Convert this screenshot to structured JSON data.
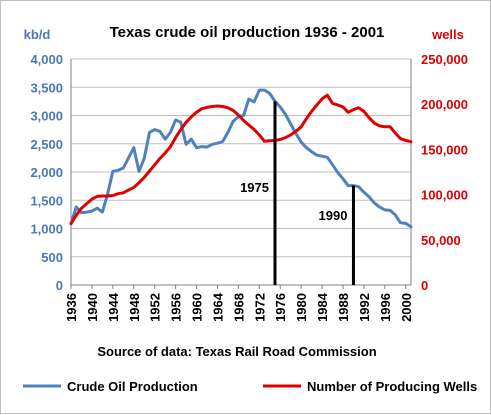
{
  "chart_data": {
    "type": "line",
    "title": "Texas crude oil production 1936 - 2001",
    "left_unit": "kb/d",
    "right_unit": "wells",
    "source": "Source of data: Texas Rail Road Commission",
    "left_axis": {
      "range": [
        0,
        4000
      ],
      "ticks": [
        "0",
        "500",
        "1,000",
        "1,500",
        "2,000",
        "2,500",
        "3,000",
        "3,500",
        "4,000"
      ]
    },
    "right_axis": {
      "range": [
        0,
        250000
      ],
      "ticks": [
        "0",
        "50,000",
        "100,000",
        "150,000",
        "200,000",
        "250,000"
      ]
    },
    "x_range": [
      1936,
      2001
    ],
    "x_ticks": [
      "1936",
      "1940",
      "1944",
      "1948",
      "1952",
      "1956",
      "1960",
      "1964",
      "1968",
      "1972",
      "1976",
      "1980",
      "1984",
      "1988",
      "1992",
      "1996",
      "2000"
    ],
    "grid": true,
    "legend_position": "bottom",
    "series": [
      {
        "name": "Crude Oil Production",
        "axis": "left",
        "color": "#4f81bd",
        "points": [
          [
            1936,
            1080
          ],
          [
            1937,
            1380
          ],
          [
            1938,
            1280
          ],
          [
            1939,
            1290
          ],
          [
            1940,
            1310
          ],
          [
            1941,
            1360
          ],
          [
            1942,
            1290
          ],
          [
            1943,
            1610
          ],
          [
            1944,
            2010
          ],
          [
            1945,
            2030
          ],
          [
            1946,
            2070
          ],
          [
            1947,
            2250
          ],
          [
            1948,
            2430
          ],
          [
            1949,
            2010
          ],
          [
            1950,
            2240
          ],
          [
            1951,
            2700
          ],
          [
            1952,
            2750
          ],
          [
            1953,
            2720
          ],
          [
            1954,
            2580
          ],
          [
            1955,
            2700
          ],
          [
            1956,
            2920
          ],
          [
            1957,
            2880
          ],
          [
            1958,
            2490
          ],
          [
            1959,
            2580
          ],
          [
            1960,
            2430
          ],
          [
            1961,
            2450
          ],
          [
            1962,
            2440
          ],
          [
            1963,
            2490
          ],
          [
            1964,
            2510
          ],
          [
            1965,
            2540
          ],
          [
            1966,
            2700
          ],
          [
            1967,
            2900
          ],
          [
            1968,
            2980
          ],
          [
            1969,
            3000
          ],
          [
            1970,
            3290
          ],
          [
            1971,
            3240
          ],
          [
            1972,
            3450
          ],
          [
            1973,
            3450
          ],
          [
            1974,
            3390
          ],
          [
            1975,
            3250
          ],
          [
            1976,
            3150
          ],
          [
            1977,
            3020
          ],
          [
            1978,
            2850
          ],
          [
            1979,
            2680
          ],
          [
            1980,
            2530
          ],
          [
            1981,
            2430
          ],
          [
            1982,
            2360
          ],
          [
            1983,
            2300
          ],
          [
            1984,
            2280
          ],
          [
            1985,
            2260
          ],
          [
            1986,
            2130
          ],
          [
            1987,
            1990
          ],
          [
            1988,
            1880
          ],
          [
            1989,
            1760
          ],
          [
            1990,
            1760
          ],
          [
            1991,
            1740
          ],
          [
            1992,
            1640
          ],
          [
            1993,
            1560
          ],
          [
            1994,
            1450
          ],
          [
            1995,
            1380
          ],
          [
            1996,
            1330
          ],
          [
            1997,
            1320
          ],
          [
            1998,
            1240
          ],
          [
            1999,
            1100
          ],
          [
            2000,
            1090
          ],
          [
            2001,
            1030
          ]
        ]
      },
      {
        "name": "Number of Producing Wells",
        "axis": "right",
        "color": "#e00000",
        "points": [
          [
            1936,
            68000
          ],
          [
            1937,
            77000
          ],
          [
            1938,
            85000
          ],
          [
            1939,
            90000
          ],
          [
            1940,
            95000
          ],
          [
            1941,
            98000
          ],
          [
            1942,
            98500
          ],
          [
            1943,
            98500
          ],
          [
            1944,
            99000
          ],
          [
            1945,
            101000
          ],
          [
            1946,
            102000
          ],
          [
            1947,
            105000
          ],
          [
            1948,
            108000
          ],
          [
            1949,
            113000
          ],
          [
            1950,
            119000
          ],
          [
            1951,
            126000
          ],
          [
            1952,
            133000
          ],
          [
            1953,
            140000
          ],
          [
            1954,
            146000
          ],
          [
            1955,
            153000
          ],
          [
            1956,
            163000
          ],
          [
            1957,
            172000
          ],
          [
            1958,
            180000
          ],
          [
            1959,
            186000
          ],
          [
            1960,
            191000
          ],
          [
            1961,
            195000
          ],
          [
            1962,
            196500
          ],
          [
            1963,
            197500
          ],
          [
            1964,
            198000
          ],
          [
            1965,
            197500
          ],
          [
            1966,
            196000
          ],
          [
            1967,
            193000
          ],
          [
            1968,
            188000
          ],
          [
            1969,
            182000
          ],
          [
            1970,
            177000
          ],
          [
            1971,
            172000
          ],
          [
            1972,
            166000
          ],
          [
            1973,
            159000
          ],
          [
            1974,
            159500
          ],
          [
            1975,
            160000
          ],
          [
            1976,
            161000
          ],
          [
            1977,
            163000
          ],
          [
            1978,
            166000
          ],
          [
            1979,
            170000
          ],
          [
            1980,
            175000
          ],
          [
            1981,
            184000
          ],
          [
            1982,
            192000
          ],
          [
            1983,
            199000
          ],
          [
            1984,
            206000
          ],
          [
            1985,
            210000
          ],
          [
            1986,
            201000
          ],
          [
            1987,
            199000
          ],
          [
            1988,
            197000
          ],
          [
            1989,
            191000
          ],
          [
            1990,
            194000
          ],
          [
            1991,
            196000
          ],
          [
            1992,
            192000
          ],
          [
            1993,
            185000
          ],
          [
            1994,
            179000
          ],
          [
            1995,
            176000
          ],
          [
            1996,
            175000
          ],
          [
            1997,
            175000
          ],
          [
            1998,
            168000
          ],
          [
            1999,
            162000
          ],
          [
            2000,
            160000
          ],
          [
            2001,
            158500
          ]
        ]
      }
    ],
    "annotations": [
      {
        "label": "1975",
        "year": 1975,
        "value": 3250
      },
      {
        "label": "1990",
        "year": 1990,
        "value": 1760
      }
    ]
  }
}
